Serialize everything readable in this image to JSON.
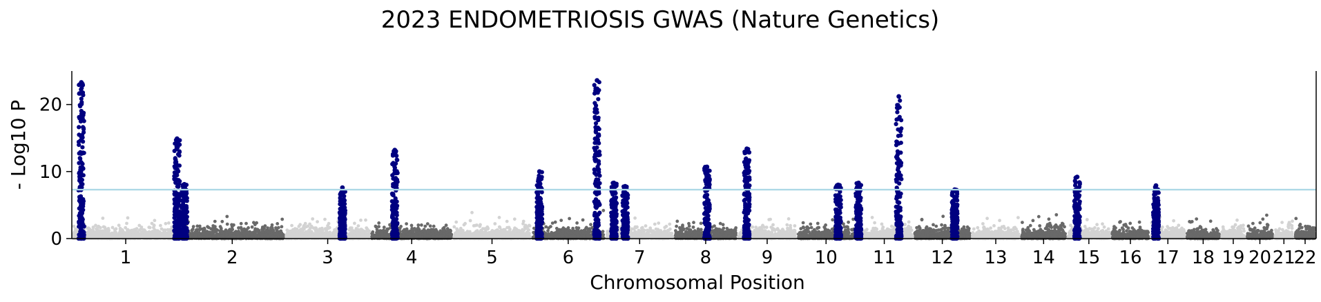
{
  "chart_data": {
    "type": "scatter",
    "title": "2023 ENDOMETRIOSIS GWAS (Nature Genetics)",
    "xlabel": "Chromosomal Position",
    "ylabel": "- Log10 P",
    "ylim": [
      0,
      25
    ],
    "yticks": [
      0,
      10,
      20
    ],
    "grid": false,
    "legend": "none",
    "significance_threshold": 7.3,
    "colors": {
      "odd_chromosome": "#d3d3d3",
      "even_chromosome": "#696969",
      "significant": "#000080",
      "threshold": "#add8e6"
    },
    "chromosomes": [
      {
        "label": "1",
        "size": 249
      },
      {
        "label": "2",
        "size": 243
      },
      {
        "label": "3",
        "size": 198
      },
      {
        "label": "4",
        "size": 190
      },
      {
        "label": "5",
        "size": 181
      },
      {
        "label": "6",
        "size": 171
      },
      {
        "label": "7",
        "size": 159
      },
      {
        "label": "8",
        "size": 146
      },
      {
        "label": "9",
        "size": 138
      },
      {
        "label": "10",
        "size": 134
      },
      {
        "label": "11",
        "size": 135
      },
      {
        "label": "12",
        "size": 133
      },
      {
        "label": "13",
        "size": 114
      },
      {
        "label": "14",
        "size": 107
      },
      {
        "label": "15",
        "size": 102
      },
      {
        "label": "16",
        "size": 90
      },
      {
        "label": "17",
        "size": 83
      },
      {
        "label": "18",
        "size": 80
      },
      {
        "label": "19",
        "size": 59
      },
      {
        "label": "20",
        "size": 64
      },
      {
        "label": "21",
        "size": 47
      },
      {
        "label": "22",
        "size": 51
      }
    ],
    "hits": [
      {
        "chr": "1",
        "pos": 22,
        "peak": 23.3
      },
      {
        "chr": "1",
        "pos": 243,
        "peak": 14.9
      },
      {
        "chr": "2",
        "pos": 11,
        "peak": 8.1
      },
      {
        "chr": "3",
        "pos": 133,
        "peak": 7.6
      },
      {
        "chr": "4",
        "pos": 56,
        "peak": 13.2
      },
      {
        "chr": "6",
        "pos": 19,
        "peak": 10.0
      },
      {
        "chr": "6",
        "pos": 152,
        "peak": 23.6
      },
      {
        "chr": "7",
        "pos": 20,
        "peak": 8.3
      },
      {
        "chr": "7",
        "pos": 46,
        "peak": 7.8
      },
      {
        "chr": "8",
        "pos": 76,
        "peak": 10.7
      },
      {
        "chr": "9",
        "pos": 22,
        "peak": 13.4
      },
      {
        "chr": "10",
        "pos": 95,
        "peak": 8.0
      },
      {
        "chr": "11",
        "pos": 8,
        "peak": 8.3
      },
      {
        "chr": "11",
        "pos": 101,
        "peak": 21.2
      },
      {
        "chr": "12",
        "pos": 95,
        "peak": 7.3
      },
      {
        "chr": "15",
        "pos": 24,
        "peak": 9.2
      },
      {
        "chr": "17",
        "pos": 14,
        "peak": 7.9
      }
    ]
  }
}
